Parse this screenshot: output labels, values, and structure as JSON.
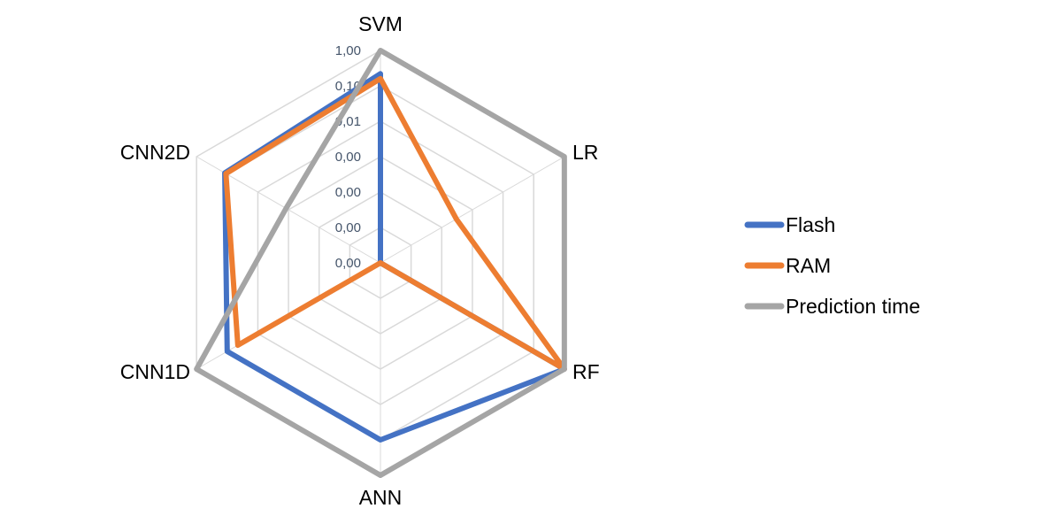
{
  "chart_data": {
    "type": "radar",
    "title": "",
    "categories": [
      "SVM",
      "LR",
      "RF",
      "ANN",
      "CNN1D",
      "CNN2D"
    ],
    "scale": "log",
    "range": [
      1e-06,
      1
    ],
    "tick_values": [
      1e-06,
      1e-05,
      0.0001,
      0.001,
      0.01,
      0.1,
      1
    ],
    "tick_labels": [
      "0,00",
      "0,00",
      "0,00",
      "0,00",
      "0,01",
      "0,10",
      "1,00"
    ],
    "grid": true,
    "legend": "right",
    "series": [
      {
        "name": "Flash",
        "color": "#4472C4",
        "values": [
          0.22,
          1e-06,
          1,
          0.1,
          0.1,
          0.12
        ]
      },
      {
        "name": "RAM",
        "color": "#ED7D31",
        "values": [
          0.16,
          0.0003,
          1,
          1e-06,
          0.045,
          0.11
        ]
      },
      {
        "name": "Prediction time",
        "color": "#A5A5A5",
        "values": [
          1,
          1,
          1,
          1,
          1,
          0.0012
        ]
      }
    ]
  }
}
